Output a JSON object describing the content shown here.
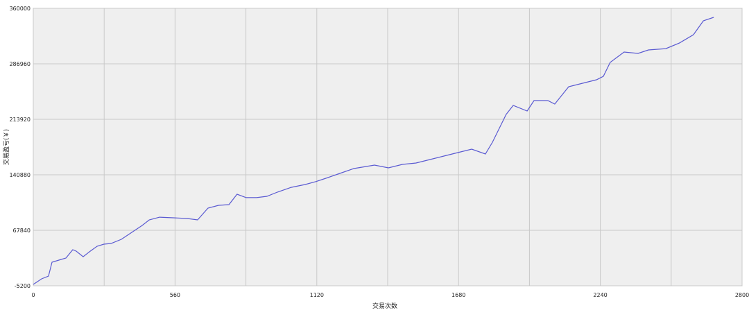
{
  "chart_data": {
    "type": "line",
    "xlabel": "交易次数",
    "ylabel": "交易盈亏(￥)",
    "x": [
      0,
      33,
      60,
      74,
      101,
      129,
      156,
      170,
      197,
      225,
      252,
      279,
      307,
      348,
      389,
      430,
      458,
      499,
      553,
      608,
      649,
      690,
      732,
      773,
      805,
      841,
      882,
      923,
      964,
      1019,
      1074,
      1115,
      1156,
      1211,
      1266,
      1348,
      1403,
      1458,
      1512,
      1567,
      1622,
      1677,
      1732,
      1786,
      1814,
      1841,
      1868,
      1896,
      1951,
      1978,
      2033,
      2060,
      2115,
      2170,
      2225,
      2252,
      2279,
      2334,
      2389,
      2430,
      2499,
      2553,
      2608,
      2647,
      2688
    ],
    "series": [
      {
        "color": "#5a5ad2",
        "values": [
          -3400,
          3900,
          7500,
          25800,
          28600,
          31300,
          42300,
          40400,
          33100,
          40400,
          46800,
          49600,
          50500,
          56000,
          65100,
          74200,
          81500,
          85100,
          84300,
          83400,
          81500,
          97100,
          100700,
          101600,
          115300,
          110800,
          110800,
          112600,
          118100,
          124400,
          128100,
          131800,
          136300,
          142700,
          149100,
          153700,
          150000,
          154600,
          156400,
          161000,
          165500,
          170100,
          174700,
          168300,
          183800,
          202100,
          220300,
          232200,
          224900,
          238600,
          238600,
          234000,
          256800,
          261400,
          266000,
          270500,
          288800,
          302500,
          300700,
          305200,
          307000,
          314400,
          325300,
          343600,
          348100
        ]
      }
    ],
    "xlim": [
      0,
      2800
    ],
    "xticks": [
      0,
      560,
      1120,
      1680,
      2240,
      2800
    ],
    "xminor": [
      280,
      840,
      1400,
      1960,
      2520
    ],
    "ylim": [
      -5200,
      360000
    ],
    "yticks": [
      -5200,
      67840,
      140880,
      213920,
      286960,
      360000
    ],
    "grid": true
  }
}
